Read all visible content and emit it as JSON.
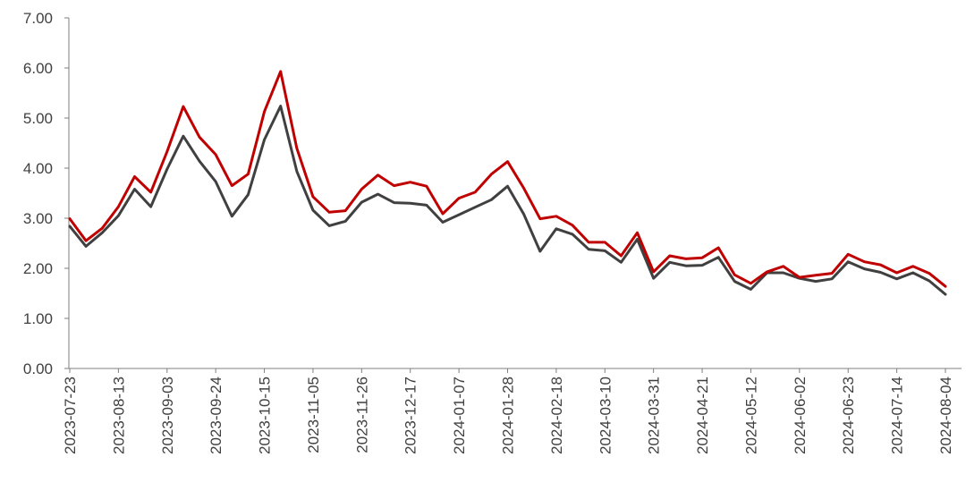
{
  "chart_data": {
    "type": "line",
    "title": "",
    "xlabel": "",
    "ylabel": "",
    "ylim": [
      0,
      7
    ],
    "y_ticks": [
      "0.00",
      "1.00",
      "2.00",
      "3.00",
      "4.00",
      "5.00",
      "6.00",
      "7.00"
    ],
    "x_tick_labels": [
      "2023-07-23",
      "2023-08-13",
      "2023-09-03",
      "2023-09-24",
      "2023-10-15",
      "2023-11-05",
      "2023-11-26",
      "2023-12-17",
      "2024-01-07",
      "2024-01-28",
      "2024-02-18",
      "2024-03-10",
      "2024-03-31",
      "2024-04-21",
      "2024-05-12",
      "2024-06-02",
      "2024-06-23",
      "2024-07-14",
      "2024-08-04"
    ],
    "x": [
      "2023-07-23",
      "2023-07-30",
      "2023-08-06",
      "2023-08-13",
      "2023-08-20",
      "2023-08-27",
      "2023-09-03",
      "2023-09-10",
      "2023-09-17",
      "2023-09-24",
      "2023-10-01",
      "2023-10-08",
      "2023-10-15",
      "2023-10-22",
      "2023-10-29",
      "2023-11-05",
      "2023-11-12",
      "2023-11-19",
      "2023-11-26",
      "2023-12-03",
      "2023-12-10",
      "2023-12-17",
      "2023-12-24",
      "2023-12-31",
      "2024-01-07",
      "2024-01-14",
      "2024-01-21",
      "2024-01-28",
      "2024-02-04",
      "2024-02-11",
      "2024-02-18",
      "2024-02-25",
      "2024-03-03",
      "2024-03-10",
      "2024-03-17",
      "2024-03-24",
      "2024-03-31",
      "2024-04-07",
      "2024-04-14",
      "2024-04-21",
      "2024-04-28",
      "2024-05-05",
      "2024-05-12",
      "2024-05-19",
      "2024-05-26",
      "2024-06-02",
      "2024-06-09",
      "2024-06-16",
      "2024-06-23",
      "2024-06-30",
      "2024-07-07",
      "2024-07-14",
      "2024-07-21",
      "2024-07-28",
      "2024-08-04"
    ],
    "grid": false,
    "legend": "none",
    "series": [
      {
        "color": "#c00000",
        "values": [
          2.99,
          2.55,
          2.8,
          3.23,
          3.83,
          3.52,
          4.33,
          5.23,
          4.62,
          4.27,
          3.65,
          3.88,
          5.13,
          5.93,
          4.4,
          3.43,
          3.12,
          3.15,
          3.58,
          3.86,
          3.65,
          3.72,
          3.64,
          3.09,
          3.4,
          3.52,
          3.88,
          4.13,
          3.6,
          2.99,
          3.04,
          2.86,
          2.52,
          2.52,
          2.25,
          2.71,
          1.93,
          2.25,
          2.19,
          2.21,
          2.41,
          1.87,
          1.7,
          1.93,
          2.04,
          1.82,
          1.86,
          1.9,
          2.28,
          2.13,
          2.07,
          1.91,
          2.04,
          1.9,
          1.64
        ]
      },
      {
        "color": "#404040",
        "values": [
          2.84,
          2.44,
          2.71,
          3.05,
          3.58,
          3.23,
          3.98,
          4.64,
          4.14,
          3.73,
          3.04,
          3.47,
          4.57,
          5.24,
          3.94,
          3.16,
          2.85,
          2.94,
          3.32,
          3.48,
          3.31,
          3.3,
          3.26,
          2.92,
          3.07,
          3.22,
          3.37,
          3.64,
          3.08,
          2.34,
          2.79,
          2.68,
          2.38,
          2.35,
          2.12,
          2.58,
          1.8,
          2.12,
          2.05,
          2.06,
          2.22,
          1.74,
          1.58,
          1.91,
          1.91,
          1.8,
          1.74,
          1.79,
          2.13,
          1.99,
          1.92,
          1.79,
          1.91,
          1.75,
          1.48
        ]
      }
    ]
  }
}
